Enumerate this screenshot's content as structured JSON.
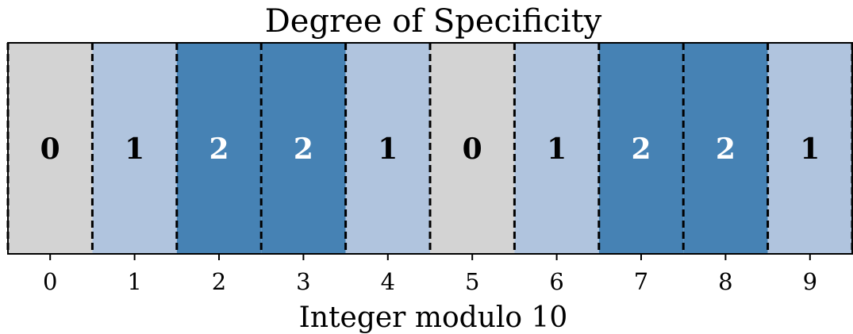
{
  "chart_data": {
    "type": "heatmap",
    "title": "Degree of Specificity",
    "xlabel": "Integer modulo 10",
    "ylabel": "",
    "categories": [
      "0",
      "1",
      "2",
      "3",
      "4",
      "5",
      "6",
      "7",
      "8",
      "9"
    ],
    "values": [
      0,
      1,
      2,
      2,
      1,
      0,
      1,
      2,
      2,
      1
    ],
    "labels": [
      "0",
      "1",
      "2",
      "2",
      "1",
      "0",
      "1",
      "2",
      "2",
      "1"
    ],
    "xlim": [
      -0.5,
      9.5
    ],
    "grid": false,
    "separators": "dashed",
    "colors": {
      "0": "#d3d3d3",
      "1": "#b0c4de",
      "2": "#4682b4"
    },
    "label_colors": {
      "0": "#000000",
      "1": "#000000",
      "2": "#ffffff"
    }
  }
}
